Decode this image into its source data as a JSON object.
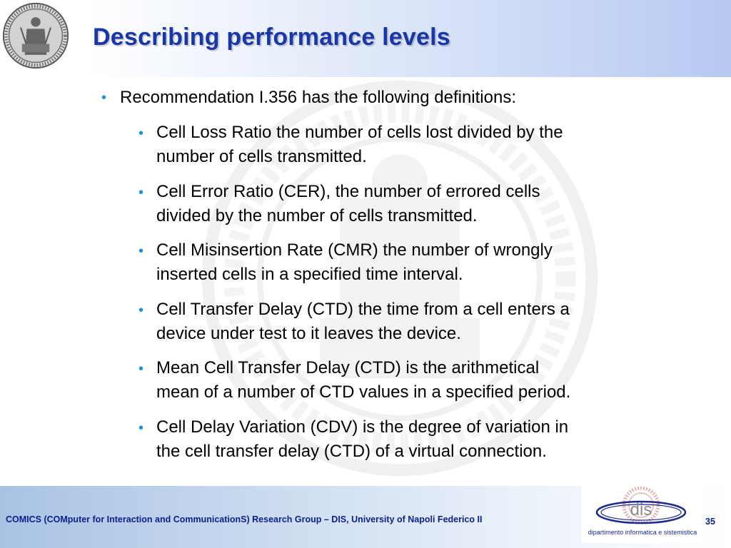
{
  "slide": {
    "title": "Describing performance levels",
    "intro": "Recommendation I.356 has the following definitions:",
    "items": [
      {
        "line1": "Cell Loss Ratio the number of cells lost divided by the",
        "line2": "number of cells transmitted."
      },
      {
        "line1": "Cell Error Ratio (CER), the number of errored cells",
        "line2": "divided by the number of cells transmitted."
      },
      {
        "line1": "Cell Misinsertion Rate (CMR) the number of wrongly",
        "line2": "inserted cells in a specified time interval."
      },
      {
        "line1": "Cell Transfer Delay (CTD) the time from a cell enters a",
        "line2": "device under test to  it leaves the device."
      },
      {
        "line1": "Mean Cell Transfer Delay (CTD) is the arithmetical",
        "line2": "mean of a number of CTD values in a specified period."
      },
      {
        "line1": "Cell Delay Variation (CDV) is the degree of variation in",
        "line2": "the cell transfer delay (CTD) of a virtual connection."
      }
    ]
  },
  "footer": {
    "text": "COMICS (COMputer for Interaction and CommunicationS) Research Group – DIS, University of Napoli Federico II",
    "logo_text": "dis",
    "logo_tagline": "dipartimento informatica e sistemistica",
    "page_number": "35"
  },
  "colors": {
    "title": "#1a37a8",
    "bullet": "#1e90d8",
    "footer_text": "#0b1f8a"
  },
  "icons": {
    "seal": "university-seal-icon",
    "watermark": "seal-watermark-icon",
    "bullet": "bullet-dot-icon"
  }
}
